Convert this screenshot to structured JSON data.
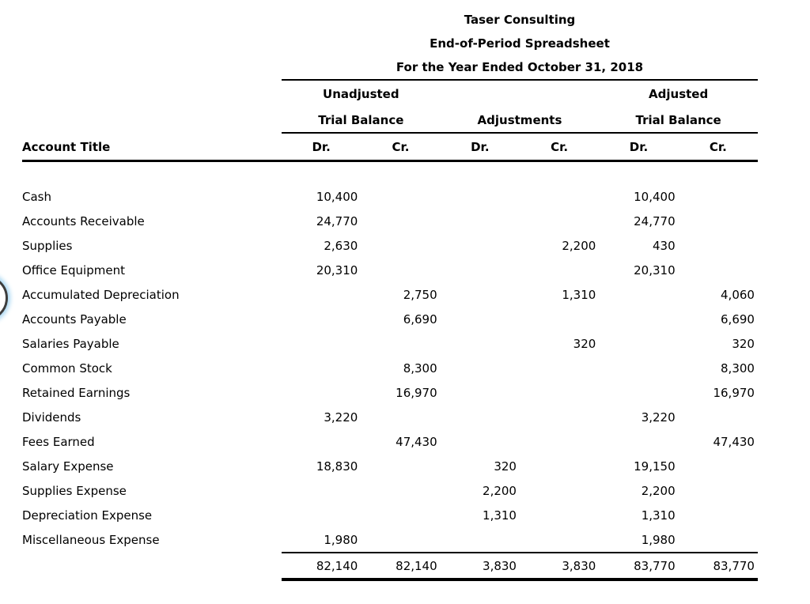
{
  "header": {
    "company": "Taser Consulting",
    "report": "End-of-Period Spreadsheet",
    "period": "For the Year Ended October 31, 2018"
  },
  "table": {
    "account_column_header": "Account Title",
    "groups": [
      {
        "top": "Unadjusted",
        "bottom": "Trial Balance"
      },
      {
        "top": "",
        "bottom": "Adjustments"
      },
      {
        "top": "Adjusted",
        "bottom": "Trial Balance"
      }
    ],
    "subheaders": [
      "Dr.",
      "Cr.",
      "Dr.",
      "Cr.",
      "Dr.",
      "Cr."
    ],
    "rows": [
      {
        "account": "Cash",
        "cells": [
          "10,400",
          "",
          "",
          "",
          "10,400",
          ""
        ]
      },
      {
        "account": "Accounts Receivable",
        "cells": [
          "24,770",
          "",
          "",
          "",
          "24,770",
          ""
        ]
      },
      {
        "account": "Supplies",
        "cells": [
          "2,630",
          "",
          "",
          "2,200",
          "430",
          ""
        ]
      },
      {
        "account": "Office Equipment",
        "cells": [
          "20,310",
          "",
          "",
          "",
          "20,310",
          ""
        ]
      },
      {
        "account": "Accumulated Depreciation",
        "cells": [
          "",
          "2,750",
          "",
          "1,310",
          "",
          "4,060"
        ]
      },
      {
        "account": "Accounts Payable",
        "cells": [
          "",
          "6,690",
          "",
          "",
          "",
          "6,690"
        ]
      },
      {
        "account": "Salaries Payable",
        "cells": [
          "",
          "",
          "",
          "320",
          "",
          "320"
        ]
      },
      {
        "account": "Common Stock",
        "cells": [
          "",
          "8,300",
          "",
          "",
          "",
          "8,300"
        ]
      },
      {
        "account": "Retained Earnings",
        "cells": [
          "",
          "16,970",
          "",
          "",
          "",
          "16,970"
        ]
      },
      {
        "account": "Dividends",
        "cells": [
          "3,220",
          "",
          "",
          "",
          "3,220",
          ""
        ]
      },
      {
        "account": "Fees Earned",
        "cells": [
          "",
          "47,430",
          "",
          "",
          "",
          "47,430"
        ]
      },
      {
        "account": "Salary Expense",
        "cells": [
          "18,830",
          "",
          "320",
          "",
          "19,150",
          ""
        ]
      },
      {
        "account": "Supplies Expense",
        "cells": [
          "",
          "",
          "2,200",
          "",
          "2,200",
          ""
        ]
      },
      {
        "account": "Depreciation Expense",
        "cells": [
          "",
          "",
          "1,310",
          "",
          "1,310",
          ""
        ]
      },
      {
        "account": "Miscellaneous Expense",
        "cells": [
          "1,980",
          "",
          "",
          "",
          "1,980",
          ""
        ]
      }
    ],
    "totals": {
      "cells": [
        "82,140",
        "82,140",
        "3,830",
        "3,830",
        "83,770",
        "83,770"
      ]
    }
  },
  "annotation": {
    "shape": "partial-circle-highlight",
    "stroke_color": "#3d3d3d",
    "glow_color": "#a9d7f2"
  },
  "colors": {
    "text": "#000000",
    "background": "#ffffff",
    "rule": "#000000"
  }
}
